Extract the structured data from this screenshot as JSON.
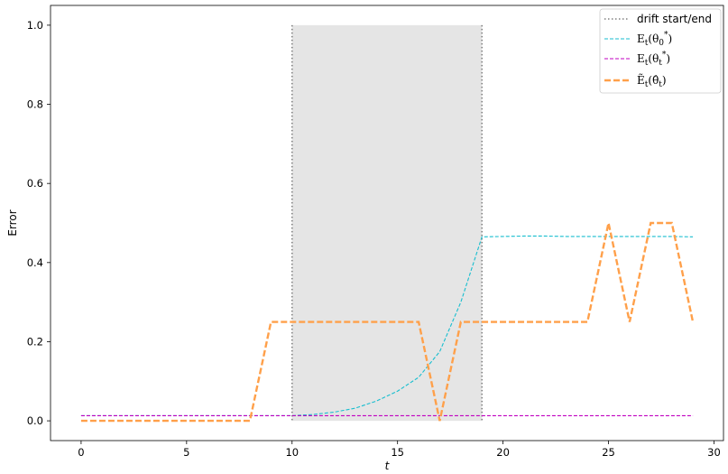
{
  "chart_data": {
    "type": "line",
    "xlabel": "t",
    "ylabel": "Error",
    "xlim": [
      -1.45,
      30.45
    ],
    "ylim": [
      -0.05,
      1.05
    ],
    "xticks": [
      0,
      5,
      10,
      15,
      20,
      25,
      30
    ],
    "yticks": [
      0.0,
      0.2,
      0.4,
      0.6,
      0.8,
      1.0
    ],
    "xtick_labels": [
      "0",
      "5",
      "10",
      "15",
      "20",
      "25",
      "30"
    ],
    "ytick_labels": [
      "0.0",
      "0.2",
      "0.4",
      "0.6",
      "0.8",
      "1.0"
    ],
    "grid": false,
    "legend_position": "top-right",
    "drift_region": {
      "label": "drift start/end",
      "start": 10,
      "end": 19,
      "fill_color": "#e5e5e5",
      "line_color": "#808080"
    },
    "series": [
      {
        "name": "E_t(θ_0^*)",
        "color": "#17becf",
        "style": "dashed",
        "x": [
          0,
          1,
          2,
          3,
          4,
          5,
          6,
          7,
          8,
          9,
          10,
          11,
          12,
          13,
          14,
          15,
          16,
          17,
          18,
          19,
          20,
          21,
          22,
          23,
          24,
          25,
          26,
          27,
          28,
          29
        ],
        "values": [
          0.013,
          0.013,
          0.013,
          0.013,
          0.013,
          0.013,
          0.013,
          0.013,
          0.013,
          0.013,
          0.013,
          0.016,
          0.022,
          0.032,
          0.05,
          0.075,
          0.11,
          0.175,
          0.3,
          0.465,
          0.466,
          0.467,
          0.467,
          0.466,
          0.466,
          0.466,
          0.466,
          0.466,
          0.466,
          0.465
        ]
      },
      {
        "name": "E_t(θ_t^*)",
        "color": "#c000c0",
        "style": "dashed",
        "x": [
          0,
          29
        ],
        "values": [
          0.013,
          0.013
        ]
      },
      {
        "name": "Ẽ_t(θ̂_t)",
        "color": "#ffa04a",
        "style": "dashed-thick",
        "x": [
          0,
          1,
          2,
          3,
          4,
          5,
          6,
          7,
          8,
          9,
          10,
          11,
          12,
          13,
          14,
          15,
          16,
          17,
          18,
          19,
          20,
          21,
          22,
          23,
          24,
          25,
          26,
          27,
          28,
          29
        ],
        "values": [
          0,
          0,
          0,
          0,
          0,
          0,
          0,
          0,
          0,
          0.25,
          0.25,
          0.25,
          0.25,
          0.25,
          0.25,
          0.25,
          0.25,
          0,
          0.25,
          0.25,
          0.25,
          0.25,
          0.25,
          0.25,
          0.25,
          0.5,
          0.25,
          0.5,
          0.5,
          0.25
        ]
      }
    ]
  }
}
